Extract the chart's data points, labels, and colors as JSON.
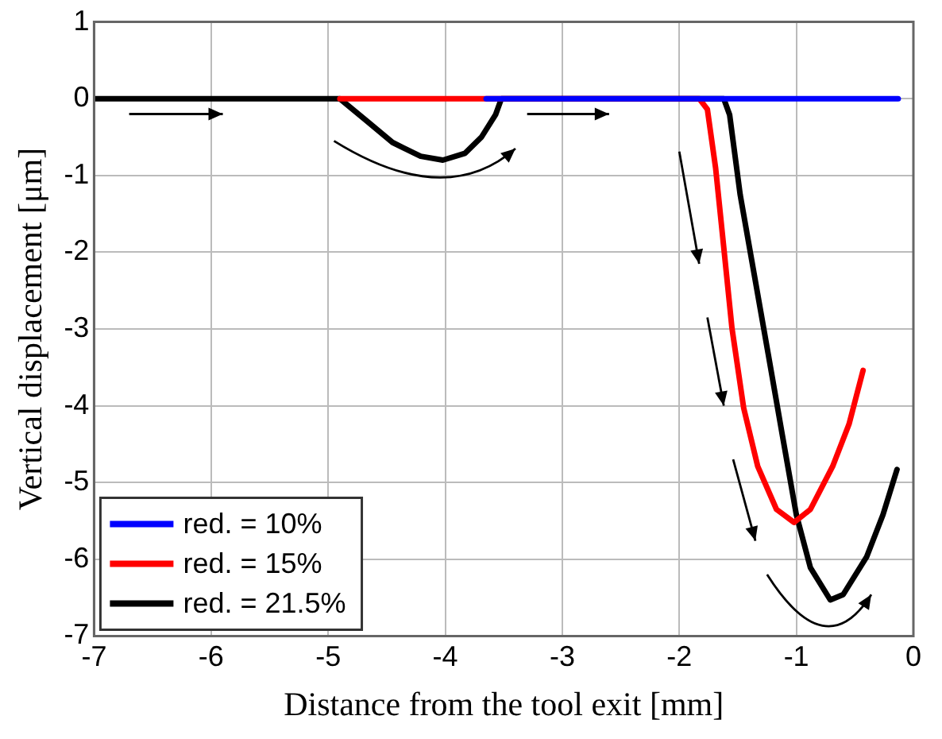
{
  "chart_data": {
    "type": "line",
    "xlabel": "Distance from the tool exit [mm]",
    "ylabel": "Vertical displacement [μm]",
    "xlim": [
      -7,
      0
    ],
    "ylim": [
      -7,
      1
    ],
    "xticks": [
      -7,
      -6,
      -5,
      -4,
      -3,
      -2,
      -1,
      0
    ],
    "yticks": [
      -7,
      -6,
      -5,
      -4,
      -3,
      -2,
      -1,
      0,
      1
    ],
    "grid": true,
    "legend": "bottom left",
    "marker": "none",
    "line_style": "solid",
    "series": [
      {
        "name": "red. = 10%",
        "color": "#0000ff",
        "x": [
          -3.65,
          -0.13
        ],
        "values": [
          0,
          0
        ]
      },
      {
        "name": "red. = 15%",
        "color": "#ff0000",
        "x": [
          -4.9,
          -1.83,
          -1.76,
          -1.69,
          -1.62,
          -1.55,
          -1.45,
          -1.33,
          -1.17,
          -1.02,
          -0.88,
          -0.69,
          -0.55,
          -0.43
        ],
        "values": [
          0,
          0,
          -0.14,
          -0.9,
          -1.94,
          -2.99,
          -4.03,
          -4.79,
          -5.35,
          -5.52,
          -5.35,
          -4.79,
          -4.24,
          -3.54
        ]
      },
      {
        "name": "red. = 21.5%",
        "color": "#000000",
        "x": [
          -7,
          -4.9,
          -4.67,
          -4.45,
          -4.21,
          -4.02,
          -3.83,
          -3.69,
          -3.57,
          -3.52,
          -1.62,
          -1.57,
          -1.48,
          -1.36,
          -1.24,
          -1.12,
          -1,
          -0.88,
          -0.71,
          -0.6,
          -0.4,
          -0.26,
          -0.14
        ],
        "values": [
          0,
          0,
          -0.29,
          -0.57,
          -0.75,
          -0.8,
          -0.71,
          -0.5,
          -0.21,
          0,
          0,
          -0.21,
          -1.25,
          -2.29,
          -3.33,
          -4.38,
          -5.42,
          -6.11,
          -6.53,
          -6.46,
          -5.97,
          -5.42,
          -4.83
        ]
      }
    ]
  }
}
